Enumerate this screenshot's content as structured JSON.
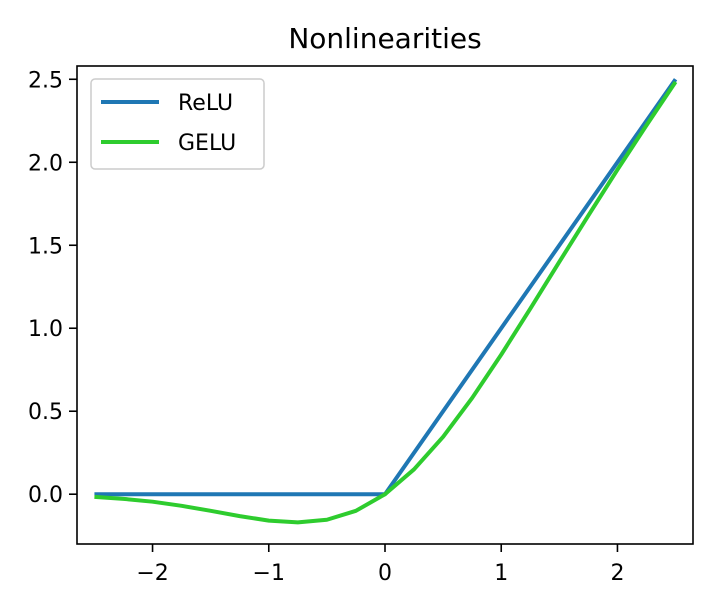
{
  "chart_data": {
    "type": "line",
    "title": "Nonlinearities",
    "xlabel": "",
    "ylabel": "",
    "xlim": [
      -2.65,
      2.65
    ],
    "ylim": [
      -0.3,
      2.58
    ],
    "x_ticks": [
      -2,
      -1,
      0,
      1,
      2
    ],
    "x_tick_labels": [
      "−2",
      "−1",
      "0",
      "1",
      "2"
    ],
    "y_ticks": [
      0.0,
      0.5,
      1.0,
      1.5,
      2.0,
      2.5
    ],
    "y_tick_labels": [
      "0.0",
      "0.5",
      "1.0",
      "1.5",
      "2.0",
      "2.5"
    ],
    "grid": false,
    "legend_position": "top-left",
    "series": [
      {
        "name": "ReLU",
        "color": "#1f77b4",
        "x": [
          -2.5,
          0.0,
          2.5
        ],
        "y": [
          0.0,
          0.0,
          2.5
        ]
      },
      {
        "name": "GELU",
        "color": "#2ecc2e",
        "x": [
          -2.5,
          -2.25,
          -2.0,
          -1.75,
          -1.5,
          -1.25,
          -1.0,
          -0.75,
          -0.5,
          -0.25,
          0.0,
          0.25,
          0.5,
          0.75,
          1.0,
          1.25,
          1.5,
          1.75,
          2.0,
          2.25,
          2.5
        ],
        "y": [
          -0.016,
          -0.028,
          -0.045,
          -0.07,
          -0.1,
          -0.132,
          -0.159,
          -0.17,
          -0.154,
          -0.1,
          0.0,
          0.15,
          0.346,
          0.58,
          0.841,
          1.118,
          1.4,
          1.68,
          1.955,
          2.223,
          2.484
        ]
      }
    ]
  }
}
